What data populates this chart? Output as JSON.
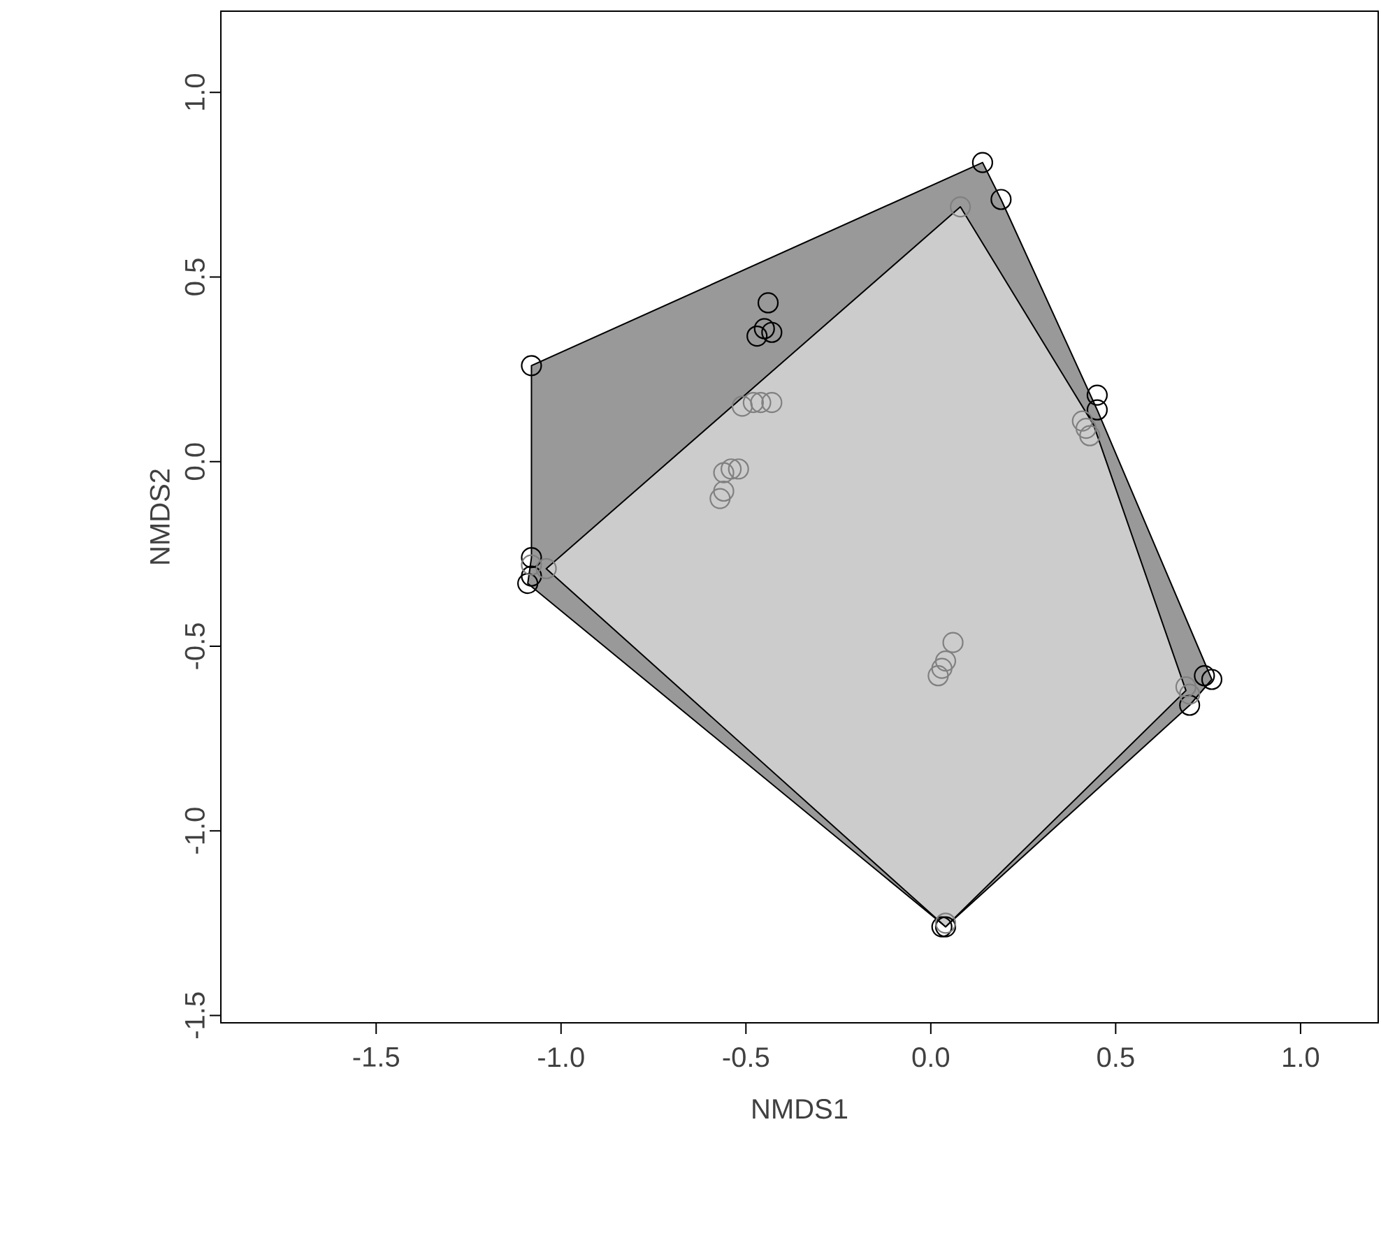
{
  "chart_data": {
    "type": "scatter",
    "xlabel": "NMDS1",
    "ylabel": "NMDS2",
    "xlim": [
      -1.92,
      1.21
    ],
    "ylim": [
      -1.52,
      1.22
    ],
    "xticks": [
      {
        "value": -1.5,
        "label": "-1.5"
      },
      {
        "value": -1.0,
        "label": "-1.0"
      },
      {
        "value": -0.5,
        "label": "-0.5"
      },
      {
        "value": 0,
        "label": "0.0"
      },
      {
        "value": 0.5,
        "label": "0.5"
      },
      {
        "value": 1.0,
        "label": "1.0"
      }
    ],
    "yticks": [
      {
        "value": -1.5,
        "label": "-1.5"
      },
      {
        "value": -1.0,
        "label": "-1.0"
      },
      {
        "value": -0.5,
        "label": "-0.5"
      },
      {
        "value": 0,
        "label": "0.0"
      },
      {
        "value": 0.5,
        "label": "0.5"
      },
      {
        "value": 1.0,
        "label": "1.0"
      }
    ],
    "grid": false,
    "series": [
      {
        "type": "area",
        "color": "#999999",
        "x": [
          -1.08,
          0.14,
          0.19,
          0.45,
          0.76,
          0.7,
          0.04,
          -1.09,
          -1.08
        ],
        "values": [
          0.26,
          0.81,
          0.71,
          0.14,
          -0.59,
          -0.66,
          -1.26,
          -0.33,
          -0.26
        ]
      },
      {
        "type": "area",
        "color": "#cccccc",
        "x": [
          0.08,
          0.44,
          0.69,
          0.04,
          -1.04
        ],
        "values": [
          0.69,
          0.1,
          -0.62,
          -1.26,
          -0.29
        ]
      },
      {
        "marker": "circle",
        "color": "#000000",
        "x": [
          -1.08,
          0.14,
          0.19,
          -0.45,
          -0.44,
          -0.47,
          -0.43,
          -1.08,
          -1.08,
          -1.09,
          0.45,
          0.45,
          0.74,
          0.76,
          0.7,
          0.04,
          0.03
        ],
        "values": [
          0.26,
          0.81,
          0.71,
          0.36,
          0.43,
          0.34,
          0.35,
          -0.26,
          -0.31,
          -0.33,
          0.18,
          0.14,
          -0.58,
          -0.59,
          -0.66,
          -1.26,
          -1.26
        ]
      },
      {
        "marker": "circle",
        "color": "#808080",
        "x": [
          0.08,
          -0.51,
          -0.48,
          -0.46,
          -0.43,
          -0.56,
          -0.54,
          -0.52,
          -0.56,
          -0.57,
          -1.04,
          0.41,
          0.43,
          0.42,
          0.06,
          0.04,
          0.03,
          0.02,
          0.69,
          0.7,
          0.04,
          -1.08
        ],
        "values": [
          0.69,
          0.15,
          0.16,
          0.16,
          0.16,
          -0.03,
          -0.02,
          -0.02,
          -0.08,
          -0.1,
          -0.29,
          0.11,
          0.07,
          0.09,
          -0.49,
          -0.54,
          -0.56,
          -0.58,
          -0.61,
          -0.63,
          -1.25,
          -0.28
        ]
      }
    ]
  }
}
